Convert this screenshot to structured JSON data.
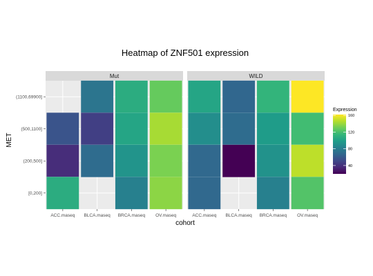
{
  "chart_data": {
    "type": "heatmap",
    "title": "Heatmap of ZNF501 expression",
    "xlabel": "cohort",
    "ylabel": "MET",
    "x_categories": [
      "ACC.maseq",
      "BLCA.maseq",
      "BRCA.maseq",
      "OV.maseq"
    ],
    "y_categories": [
      "[0,200]",
      "(200,500]",
      "(500,1100]",
      "(1100,69900]"
    ],
    "facets": [
      {
        "name": "Mut",
        "cells": [
          {
            "x": "BLCA.maseq",
            "y": "(1100,69900]",
            "value": 75
          },
          {
            "x": "BRCA.maseq",
            "y": "(1100,69900]",
            "value": 108
          },
          {
            "x": "OV.maseq",
            "y": "(1100,69900]",
            "value": 128
          },
          {
            "x": "ACC.maseq",
            "y": "(500,1100]",
            "value": 57
          },
          {
            "x": "BLCA.maseq",
            "y": "(500,1100]",
            "value": 47
          },
          {
            "x": "BRCA.maseq",
            "y": "(500,1100]",
            "value": 103
          },
          {
            "x": "OV.maseq",
            "y": "(500,1100]",
            "value": 143
          },
          {
            "x": "ACC.maseq",
            "y": "(200,500]",
            "value": 38
          },
          {
            "x": "BLCA.maseq",
            "y": "(200,500]",
            "value": 70
          },
          {
            "x": "BRCA.maseq",
            "y": "(200,500]",
            "value": 93
          },
          {
            "x": "OV.maseq",
            "y": "(200,500]",
            "value": 133
          },
          {
            "x": "ACC.maseq",
            "y": "[0,200]",
            "value": 108
          },
          {
            "x": "BRCA.maseq",
            "y": "[0,200]",
            "value": 82
          },
          {
            "x": "OV.maseq",
            "y": "[0,200]",
            "value": 137
          }
        ]
      },
      {
        "name": "WILD",
        "cells": [
          {
            "x": "ACC.maseq",
            "y": "(1100,69900]",
            "value": 103
          },
          {
            "x": "BLCA.maseq",
            "y": "(1100,69900]",
            "value": 67
          },
          {
            "x": "BRCA.maseq",
            "y": "(1100,69900]",
            "value": 113
          },
          {
            "x": "OV.maseq",
            "y": "(1100,69900]",
            "value": 162
          },
          {
            "x": "ACC.maseq",
            "y": "(500,1100]",
            "value": 90
          },
          {
            "x": "BLCA.maseq",
            "y": "(500,1100]",
            "value": 70
          },
          {
            "x": "BRCA.maseq",
            "y": "(500,1100]",
            "value": 98
          },
          {
            "x": "OV.maseq",
            "y": "(500,1100]",
            "value": 118
          },
          {
            "x": "ACC.maseq",
            "y": "(200,500]",
            "value": 68
          },
          {
            "x": "BLCA.maseq",
            "y": "(200,500]",
            "value": 20
          },
          {
            "x": "BRCA.maseq",
            "y": "(200,500]",
            "value": 92
          },
          {
            "x": "OV.maseq",
            "y": "(200,500]",
            "value": 148
          },
          {
            "x": "ACC.maseq",
            "y": "[0,200]",
            "value": 68
          },
          {
            "x": "BRCA.maseq",
            "y": "[0,200]",
            "value": 82
          },
          {
            "x": "OV.maseq",
            "y": "[0,200]",
            "value": 123
          }
        ]
      }
    ],
    "legend": {
      "title": "Expression",
      "position": "right",
      "min": 20,
      "max": 162,
      "ticks": [
        40,
        80,
        120,
        160
      ]
    },
    "color_scale": "viridis",
    "colors": {
      "panel_background": "#ebebeb",
      "gridline": "#ffffff",
      "strip_background": "#d9d9d9",
      "viridis_stops": [
        "#440154",
        "#482878",
        "#3e4989",
        "#31688e",
        "#26828e",
        "#1f9e89",
        "#35b779",
        "#6ece58",
        "#b5de2b",
        "#fde725"
      ]
    },
    "grid": true
  }
}
